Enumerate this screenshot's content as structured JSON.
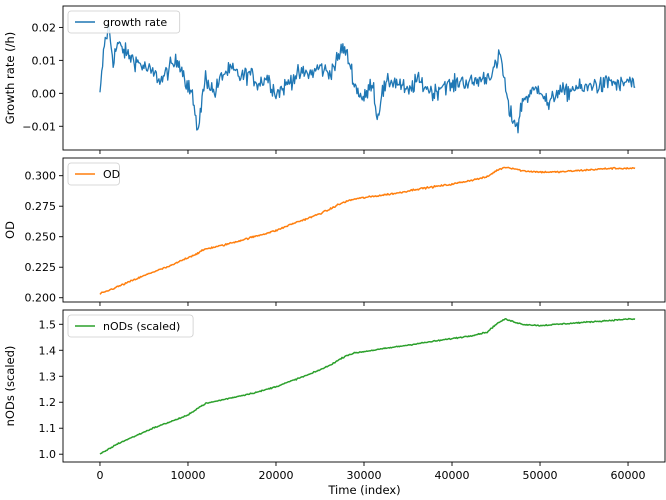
{
  "chart_data": [
    {
      "type": "line",
      "ylabel": "Growth rate (/h)",
      "xlabel": "",
      "xlim": [
        -4200,
        64200
      ],
      "ylim": [
        -0.0172,
        0.0265
      ],
      "xticks": [
        0,
        10000,
        20000,
        30000,
        40000,
        50000,
        60000
      ],
      "yticks": [
        -0.01,
        0.0,
        0.01,
        0.02
      ],
      "ytick_labels": [
        "−0.01",
        "0.00",
        "0.01",
        "0.02"
      ],
      "show_xtick_labels": false,
      "legend_position": "upper left",
      "grid": false,
      "color": "#1f77b4",
      "series": [
        {
          "name": "growth rate",
          "x": [
            0,
            500,
            1000,
            1500,
            2000,
            3000,
            4000,
            5000,
            6000,
            7000,
            8000,
            9000,
            10000,
            10500,
            11000,
            11500,
            12000,
            13000,
            14000,
            15000,
            16000,
            17000,
            18000,
            19000,
            20000,
            21000,
            22000,
            23000,
            24000,
            25000,
            26000,
            27000,
            27500,
            28000,
            28500,
            29000,
            30000,
            31000,
            31500,
            32000,
            33000,
            34000,
            35000,
            36000,
            37000,
            38000,
            39000,
            40000,
            41000,
            42000,
            43000,
            44000,
            45000,
            45500,
            46000,
            46500,
            47000,
            47500,
            48000,
            49000,
            50000,
            51000,
            52000,
            53000,
            54000,
            55000,
            56000,
            57000,
            58000,
            59000,
            60000,
            60800
          ],
          "y": [
            -0.001,
            0.015,
            0.02,
            0.01,
            0.015,
            0.012,
            0.01,
            0.008,
            0.006,
            0.004,
            0.008,
            0.01,
            0.002,
            0.0,
            -0.012,
            -0.004,
            0.005,
            0.0,
            0.006,
            0.007,
            0.005,
            0.006,
            0.003,
            0.005,
            0.0,
            0.002,
            0.005,
            0.006,
            0.006,
            0.008,
            0.006,
            0.01,
            0.014,
            0.012,
            0.008,
            0.002,
            -0.002,
            0.004,
            -0.008,
            0.0,
            0.004,
            0.003,
            0.0,
            0.004,
            0.002,
            0.0,
            0.003,
            0.002,
            0.004,
            0.003,
            0.004,
            0.005,
            0.008,
            0.012,
            0.003,
            -0.006,
            -0.008,
            -0.01,
            -0.002,
            0.0,
            0.002,
            -0.004,
            0.001,
            0.0,
            0.002,
            0.001,
            0.003,
            0.002,
            0.004,
            0.002,
            0.004,
            0.002
          ]
        }
      ]
    },
    {
      "type": "line",
      "ylabel": "OD",
      "xlabel": "",
      "xlim": [
        -4200,
        64200
      ],
      "ylim": [
        0.1965,
        0.3145
      ],
      "xticks": [
        0,
        10000,
        20000,
        30000,
        40000,
        50000,
        60000
      ],
      "yticks": [
        0.2,
        0.225,
        0.25,
        0.275,
        0.3
      ],
      "ytick_labels": [
        "0.200",
        "0.225",
        "0.250",
        "0.275",
        "0.300"
      ],
      "show_xtick_labels": false,
      "legend_position": "upper left",
      "grid": false,
      "color": "#ff7f0e",
      "series": [
        {
          "name": "OD",
          "x": [
            0,
            1000,
            2000,
            4000,
            6000,
            8000,
            10000,
            11000,
            12000,
            14000,
            16000,
            18000,
            20000,
            22000,
            24000,
            26000,
            27000,
            28000,
            29000,
            30000,
            31000,
            32000,
            34000,
            36000,
            38000,
            40000,
            42000,
            44000,
            45000,
            46000,
            47000,
            48000,
            50000,
            52000,
            54000,
            56000,
            58000,
            60000,
            60800
          ],
          "y": [
            0.203,
            0.206,
            0.209,
            0.215,
            0.221,
            0.226,
            0.233,
            0.236,
            0.24,
            0.243,
            0.247,
            0.251,
            0.255,
            0.261,
            0.266,
            0.272,
            0.276,
            0.279,
            0.281,
            0.282,
            0.283,
            0.284,
            0.286,
            0.289,
            0.291,
            0.293,
            0.296,
            0.299,
            0.304,
            0.307,
            0.306,
            0.304,
            0.303,
            0.303,
            0.304,
            0.305,
            0.306,
            0.306,
            0.306
          ]
        }
      ]
    },
    {
      "type": "line",
      "ylabel": "nODs (scaled)",
      "xlabel": "Time (index)",
      "xlim": [
        -4200,
        64200
      ],
      "ylim": [
        0.97,
        1.555
      ],
      "xticks": [
        0,
        10000,
        20000,
        30000,
        40000,
        50000,
        60000
      ],
      "xtick_labels": [
        "0",
        "10000",
        "20000",
        "30000",
        "40000",
        "50000",
        "60000"
      ],
      "yticks": [
        1.0,
        1.1,
        1.2,
        1.3,
        1.4,
        1.5
      ],
      "ytick_labels": [
        "1.0",
        "1.1",
        "1.2",
        "1.3",
        "1.4",
        "1.5"
      ],
      "show_xtick_labels": true,
      "legend_position": "upper left",
      "grid": false,
      "color": "#2ca02c",
      "series": [
        {
          "name": "nODs (scaled)",
          "x": [
            0,
            1000,
            2000,
            4000,
            6000,
            8000,
            10000,
            11000,
            12000,
            14000,
            16000,
            18000,
            20000,
            22000,
            24000,
            26000,
            27000,
            28000,
            29000,
            30000,
            31000,
            32000,
            34000,
            36000,
            38000,
            40000,
            42000,
            44000,
            45000,
            46000,
            47000,
            48000,
            50000,
            52000,
            54000,
            56000,
            58000,
            60000,
            60800
          ],
          "y": [
            1.0,
            1.02,
            1.04,
            1.07,
            1.1,
            1.125,
            1.15,
            1.175,
            1.195,
            1.21,
            1.225,
            1.24,
            1.26,
            1.285,
            1.31,
            1.34,
            1.36,
            1.38,
            1.39,
            1.395,
            1.4,
            1.405,
            1.415,
            1.425,
            1.435,
            1.445,
            1.455,
            1.47,
            1.5,
            1.52,
            1.51,
            1.5,
            1.495,
            1.5,
            1.505,
            1.51,
            1.515,
            1.52,
            1.52
          ]
        }
      ]
    }
  ]
}
